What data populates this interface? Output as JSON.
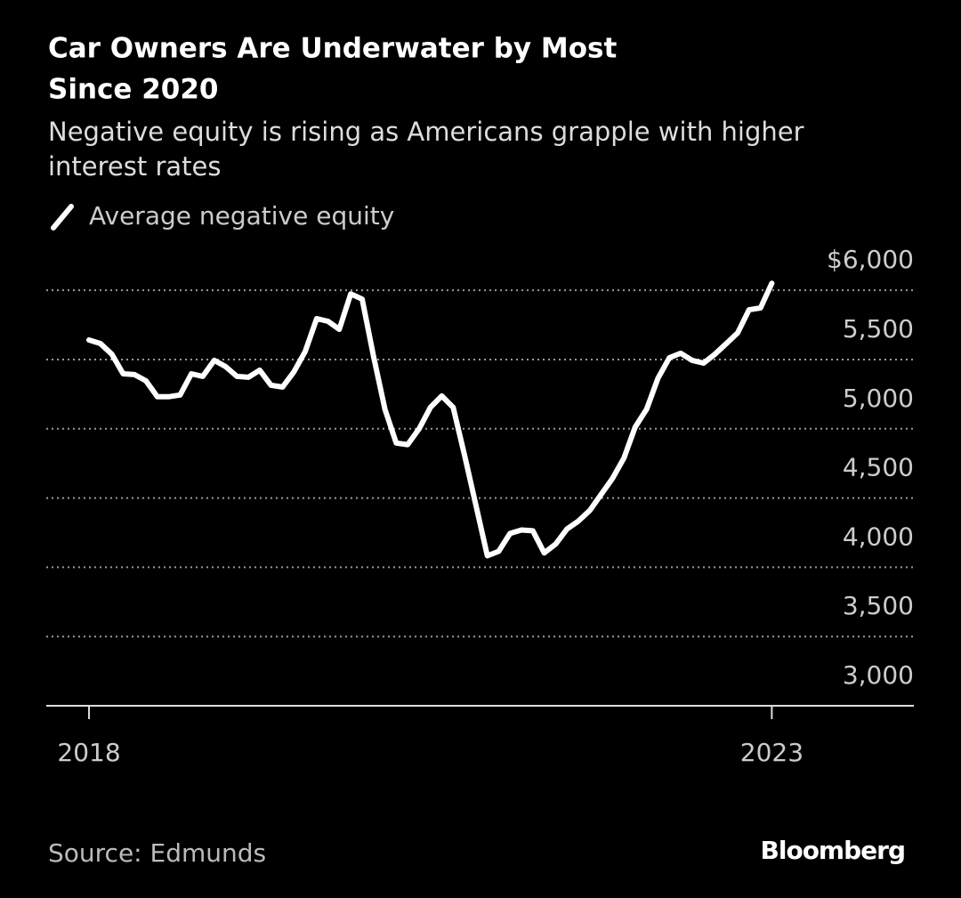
{
  "chart_data": {
    "type": "line",
    "title": "Car Owners Are Underwater by Most Since 2020",
    "title_lines": [
      "Car Owners Are Underwater by Most",
      "Since 2020"
    ],
    "subtitle_lines": [
      "Negative equity is rising as Americans grapple with higher",
      "interest rates"
    ],
    "source": "Source: Edmunds",
    "brand": "Bloomberg",
    "x": [
      2018,
      2018.083,
      2018.167,
      2018.25,
      2018.333,
      2018.417,
      2018.5,
      2018.583,
      2018.667,
      2018.75,
      2018.833,
      2018.917,
      2019,
      2019.083,
      2019.167,
      2019.25,
      2019.333,
      2019.417,
      2019.5,
      2019.583,
      2019.667,
      2019.75,
      2019.833,
      2019.917,
      2020,
      2020.083,
      2020.167,
      2020.25,
      2020.333,
      2020.417,
      2020.5,
      2020.583,
      2020.667,
      2020.75,
      2020.833,
      2020.917,
      2021,
      2021.083,
      2021.167,
      2021.25,
      2021.333,
      2021.417,
      2021.5,
      2021.583,
      2021.667,
      2021.75,
      2021.833,
      2021.917,
      2022,
      2022.083,
      2022.167,
      2022.25,
      2022.333,
      2022.417,
      2022.5,
      2022.583,
      2022.667,
      2022.75,
      2022.833,
      2022.917,
      2023
    ],
    "series": [
      {
        "name": "Average negative equity",
        "color": "#ffffff",
        "values": [
          5641,
          5615,
          5538,
          5397,
          5391,
          5346,
          5231,
          5231,
          5244,
          5397,
          5378,
          5494,
          5449,
          5378,
          5372,
          5423,
          5314,
          5301,
          5410,
          5558,
          5795,
          5776,
          5718,
          5974,
          5936,
          5526,
          5141,
          4897,
          4885,
          5000,
          5154,
          5237,
          5154,
          4808,
          4449,
          4083,
          4115,
          4244,
          4269,
          4263,
          4103,
          4167,
          4276,
          4333,
          4410,
          4526,
          4641,
          4788,
          5013,
          5141,
          5365,
          5513,
          5545,
          5494,
          5474,
          5538,
          5615,
          5692,
          5859,
          5872,
          6050
        ]
      }
    ],
    "xlim": [
      2017.687,
      2024.04
    ],
    "xticks": [
      2018,
      2023
    ],
    "ylim": [
      3000,
      6200
    ],
    "yticks": [
      {
        "value": 3000,
        "label": "3,000"
      },
      {
        "value": 3500,
        "label": "3,500"
      },
      {
        "value": 4000,
        "label": "4,000"
      },
      {
        "value": 4500,
        "label": "4,500"
      },
      {
        "value": 5000,
        "label": "5,000"
      },
      {
        "value": 5500,
        "label": "5,500"
      },
      {
        "value": 6000,
        "label": "$6,000"
      }
    ],
    "grid": true
  }
}
